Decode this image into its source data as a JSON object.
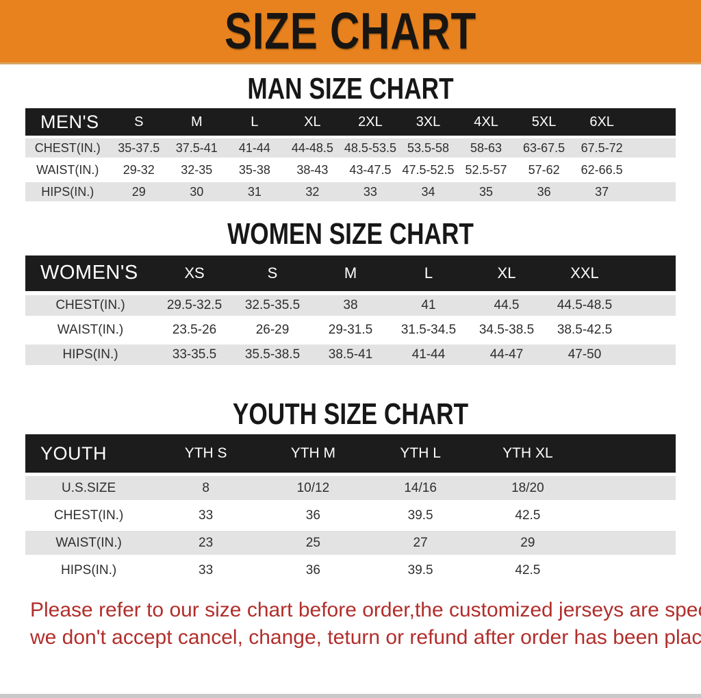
{
  "banner": {
    "title": "SIZE CHART"
  },
  "colors": {
    "banner_bg": "#E8821E",
    "table_header_bg": "#1C1C1C",
    "row_stripe": "#E3E3E4",
    "disclaimer_text": "#B12E2B"
  },
  "sections": [
    {
      "title": "MAN SIZE CHART",
      "table": {
        "header_label": "MEN'S",
        "columns": [
          "S",
          "M",
          "L",
          "XL",
          "2XL",
          "3XL",
          "4XL",
          "5XL",
          "6XL"
        ],
        "rows": [
          {
            "label": "CHEST(IN.)",
            "values": [
              "35-37.5",
              "37.5-41",
              "41-44",
              "44-48.5",
              "48.5-53.5",
              "53.5-58",
              "58-63",
              "63-67.5",
              "67.5-72"
            ]
          },
          {
            "label": "WAIST(IN.)",
            "values": [
              "29-32",
              "32-35",
              "35-38",
              "38-43",
              "43-47.5",
              "47.5-52.5",
              "52.5-57",
              "57-62",
              "62-66.5"
            ]
          },
          {
            "label": "HIPS(IN.)",
            "values": [
              "29",
              "30",
              "31",
              "32",
              "33",
              "34",
              "35",
              "36",
              "37"
            ]
          }
        ]
      }
    },
    {
      "title": "WOMEN SIZE CHART",
      "table": {
        "header_label": "WOMEN'S",
        "columns": [
          "XS",
          "S",
          "M",
          "L",
          "XL",
          "XXL"
        ],
        "rows": [
          {
            "label": "CHEST(IN.)",
            "values": [
              "29.5-32.5",
              "32.5-35.5",
              "38",
              "41",
              "44.5",
              "44.5-48.5"
            ]
          },
          {
            "label": "WAIST(IN.)",
            "values": [
              "23.5-26",
              "26-29",
              "29-31.5",
              "31.5-34.5",
              "34.5-38.5",
              "38.5-42.5"
            ]
          },
          {
            "label": "HIPS(IN.)",
            "values": [
              "33-35.5",
              "35.5-38.5",
              "38.5-41",
              "41-44",
              "44-47",
              "47-50"
            ]
          }
        ]
      }
    },
    {
      "title": "YOUTH SIZE CHART",
      "table": {
        "header_label": "YOUTH",
        "columns": [
          "YTH S",
          "YTH M",
          "YTH L",
          "YTH XL"
        ],
        "rows": [
          {
            "label": "U.S.SIZE",
            "values": [
              "8",
              "10/12",
              "14/16",
              "18/20"
            ]
          },
          {
            "label": "CHEST(IN.)",
            "values": [
              "33",
              "36",
              "39.5",
              "42.5"
            ]
          },
          {
            "label": "WAIST(IN.)",
            "values": [
              "23",
              "25",
              "27",
              "29"
            ]
          },
          {
            "label": "HIPS(IN.)",
            "values": [
              "33",
              "36",
              "39.5",
              "42.5"
            ]
          }
        ]
      }
    }
  ],
  "disclaimer": {
    "line1": "Please refer to our size chart before order,the customized jerseys are special products,",
    "line2": "we don't accept cancel, change, teturn or refund after order has been placed!"
  }
}
